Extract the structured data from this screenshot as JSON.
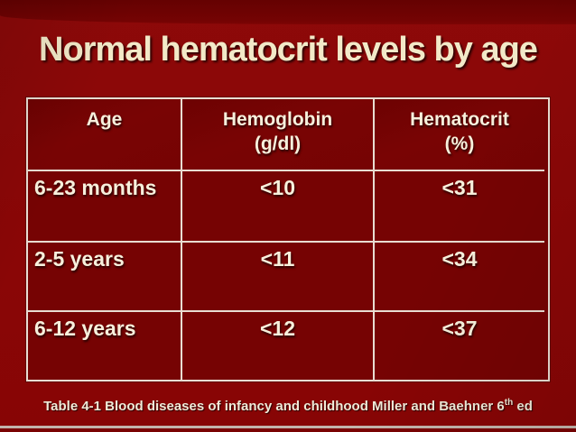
{
  "slide": {
    "title": "Normal hematocrit levels by age",
    "caption": {
      "text": "Table 4-1 Blood diseases of infancy and childhood Miller and Baehner 6",
      "superscript": "th",
      "suffix": " ed"
    }
  },
  "table": {
    "headers": [
      {
        "lines": [
          "Age"
        ]
      },
      {
        "lines": [
          "Hemoglobin",
          "(g/dl)"
        ]
      },
      {
        "lines": [
          "Hematocrit",
          "(%)"
        ]
      }
    ],
    "rows": [
      {
        "age": "6-23 months",
        "hemoglobin": "<10",
        "hematocrit": "<31"
      },
      {
        "age": "2-5 years",
        "hemoglobin": "<11",
        "hematocrit": "<34"
      },
      {
        "age": "6-12 years",
        "hemoglobin": "<12",
        "hematocrit": "<37"
      }
    ]
  },
  "colors": {
    "background": "#8a0707",
    "top_band": "#6f0202",
    "table_cell_bg": "#760303",
    "grid_line": "#e9ddd2",
    "title_text": "#f2e9c8",
    "body_text": "#f7f0dc",
    "caption_text": "#f0ead8",
    "bottom_line": "#c2b4ab"
  }
}
